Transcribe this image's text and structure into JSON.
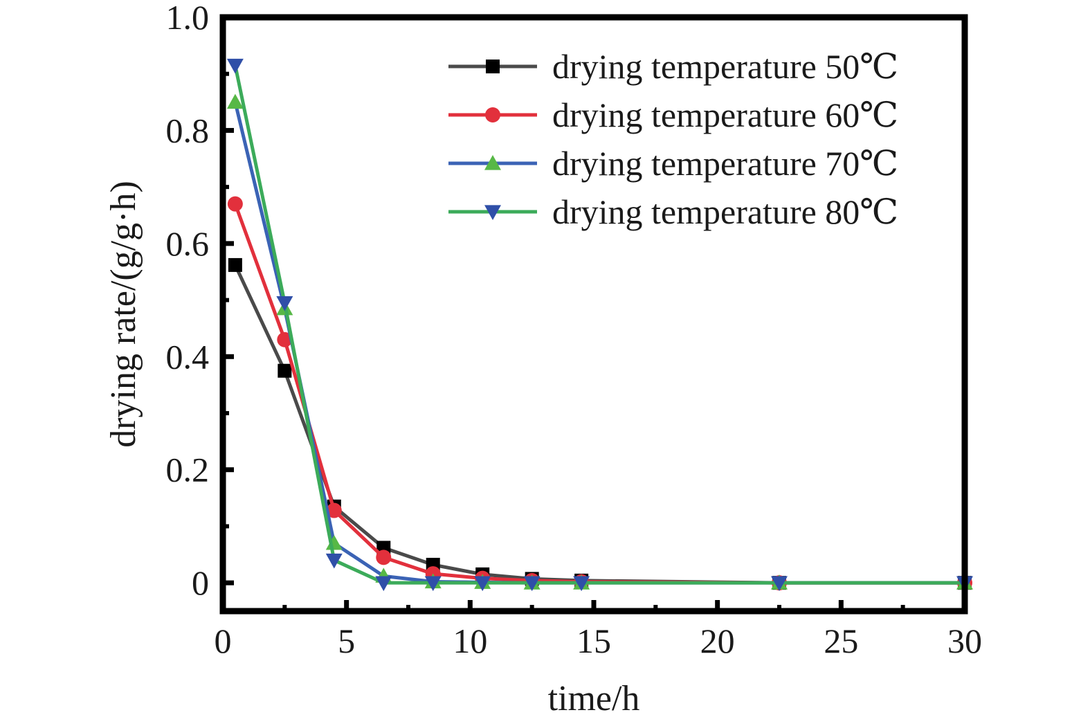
{
  "chart_data": {
    "type": "line",
    "xlabel": "time/h",
    "ylabel": "drying rate/(g/g·h)",
    "xlim": [
      0,
      30
    ],
    "ylim": [
      -0.05,
      1.0
    ],
    "xticks": [
      0,
      5,
      10,
      15,
      20,
      25,
      30
    ],
    "xtick_labels": [
      "0",
      "5",
      "10",
      "15",
      "20",
      "25",
      "30"
    ],
    "yticks": [
      0,
      0.2,
      0.4,
      0.6,
      0.8,
      1.0
    ],
    "ytick_labels": [
      "0",
      "0.2",
      "0.4",
      "0.6",
      "0.8",
      "1.0"
    ],
    "grid": false,
    "legend_position": "top-right",
    "series": [
      {
        "name": "drying temperature 50℃",
        "marker": "square",
        "line_color": "#4a4a4a",
        "marker_color": "#000000",
        "x": [
          0.5,
          2.5,
          4.5,
          6.5,
          8.5,
          10.5,
          12.5,
          14.5,
          22.5,
          30.5
        ],
        "y": [
          0.562,
          0.375,
          0.135,
          0.062,
          0.032,
          0.015,
          0.007,
          0.004,
          0.0,
          0.0
        ]
      },
      {
        "name": "drying temperature 60℃",
        "marker": "circle",
        "line_color": "#e2303c",
        "marker_color": "#e2303c",
        "x": [
          0.5,
          2.5,
          4.5,
          6.5,
          8.5,
          10.5,
          12.5,
          14.5,
          22.5,
          30.5
        ],
        "y": [
          0.67,
          0.43,
          0.128,
          0.045,
          0.016,
          0.008,
          0.004,
          0.002,
          0.0,
          0.0
        ]
      },
      {
        "name": "drying temperature 70℃",
        "marker": "triangle-up",
        "line_color": "#3b63b5",
        "marker_color": "#57b846",
        "x": [
          0.5,
          2.5,
          4.5,
          6.5,
          8.5,
          10.5,
          12.5,
          14.5,
          22.5,
          30.5
        ],
        "y": [
          0.85,
          0.485,
          0.07,
          0.012,
          0.002,
          0.001,
          0.0,
          0.0,
          0.0,
          0.0
        ]
      },
      {
        "name": "drying temperature 80℃",
        "marker": "triangle-down",
        "line_color": "#3cab5a",
        "marker_color": "#2f4fa8",
        "x": [
          0.5,
          2.5,
          4.5,
          6.5,
          8.5,
          10.5,
          12.5,
          14.5,
          22.5,
          30.5
        ],
        "y": [
          0.915,
          0.495,
          0.04,
          0.0,
          0.0,
          0.0,
          0.0,
          0.0,
          0.0,
          0.0
        ]
      }
    ]
  }
}
